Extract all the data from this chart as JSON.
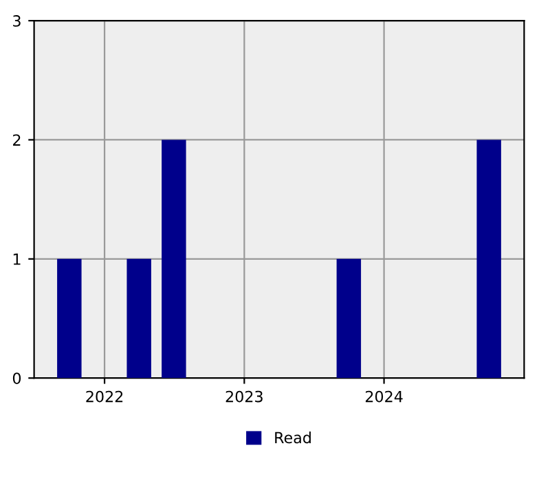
{
  "chart_data": {
    "type": "bar",
    "x": [
      "2021-10-01",
      "2022-04-01",
      "2022-07-01",
      "2023-10-01",
      "2024-10-01"
    ],
    "series": [
      {
        "name": "Read",
        "color": "#00008b",
        "values": [
          1,
          1,
          2,
          1,
          2
        ]
      }
    ],
    "xlim": [
      "2021-07-01",
      "2025-01-01"
    ],
    "xticks": [
      {
        "value": "2022-01-01",
        "label": "2022"
      },
      {
        "value": "2023-01-01",
        "label": "2023"
      },
      {
        "value": "2024-01-01",
        "label": "2024"
      }
    ],
    "ylim": [
      0,
      3
    ],
    "yticks": [
      0,
      1,
      2,
      3
    ],
    "grid": true,
    "legend": "bottom"
  }
}
